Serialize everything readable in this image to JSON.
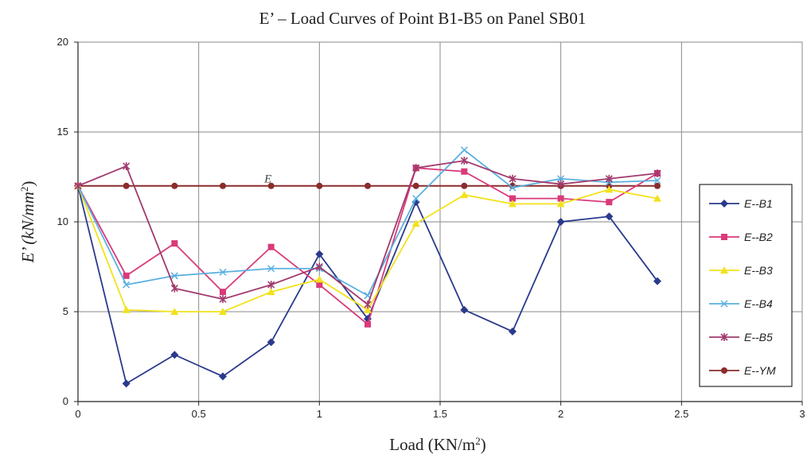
{
  "chart_data": {
    "type": "line",
    "title": "E’ – Load Curves of Point B1-B5 on Panel SB01",
    "xlabel": "Load (KN/m",
    "xlabel_sup": "2",
    "xlabel_close": ")",
    "ylabel": "E’ (kN/mm",
    "ylabel_sup": "2",
    "ylabel_close": ")",
    "xlim": [
      0,
      3
    ],
    "ylim": [
      0,
      20
    ],
    "x_ticks": [
      0,
      0.5,
      1,
      1.5,
      2,
      2.5,
      3
    ],
    "x_tick_labels": [
      "0",
      "0.5",
      "1",
      "1.5",
      "2",
      "2.5",
      "3"
    ],
    "y_ticks": [
      0,
      5,
      10,
      15,
      20
    ],
    "y_tick_labels": [
      "0",
      "5",
      "10",
      "15",
      "20"
    ],
    "grid": true,
    "legend_position": "right",
    "annotation": "E",
    "annotation_at": [
      0.8,
      12.2
    ],
    "x": [
      0,
      0.2,
      0.4,
      0.6,
      0.8,
      1.0,
      1.2,
      1.4,
      1.6,
      1.8,
      2.0,
      2.2,
      2.4
    ],
    "series": [
      {
        "name": "E--B1",
        "color": "#2a3a8c",
        "marker": "diamond",
        "values": [
          12.0,
          1.0,
          2.6,
          1.4,
          3.3,
          8.2,
          4.6,
          11.1,
          5.1,
          3.9,
          10.0,
          10.3,
          6.7
        ]
      },
      {
        "name": "E--B2",
        "color": "#d93a7a",
        "marker": "square",
        "values": [
          12.0,
          7.0,
          8.8,
          6.1,
          8.6,
          6.5,
          4.3,
          13.0,
          12.8,
          11.3,
          11.3,
          11.1,
          12.7
        ]
      },
      {
        "name": "E--B3",
        "color": "#f2e21b",
        "marker": "triangle",
        "values": [
          12.0,
          5.1,
          5.0,
          5.0,
          6.1,
          6.8,
          5.1,
          9.9,
          11.5,
          11.0,
          11.0,
          11.8,
          11.3
        ]
      },
      {
        "name": "E--B4",
        "color": "#5ab0e0",
        "marker": "x",
        "values": [
          12.0,
          6.5,
          7.0,
          7.2,
          7.4,
          7.4,
          5.9,
          11.3,
          14.0,
          11.9,
          12.4,
          12.2,
          12.3
        ]
      },
      {
        "name": "E--B5",
        "color": "#a13a6e",
        "marker": "star",
        "values": [
          12.0,
          13.1,
          6.3,
          5.7,
          6.5,
          7.5,
          5.4,
          13.0,
          13.4,
          12.4,
          12.1,
          12.4,
          12.7
        ]
      },
      {
        "name": "E--YM",
        "color": "#8b2c2c",
        "marker": "circle",
        "values": [
          12.0,
          12.0,
          12.0,
          12.0,
          12.0,
          12.0,
          12.0,
          12.0,
          12.0,
          12.0,
          12.0,
          12.0,
          12.0
        ]
      }
    ]
  }
}
